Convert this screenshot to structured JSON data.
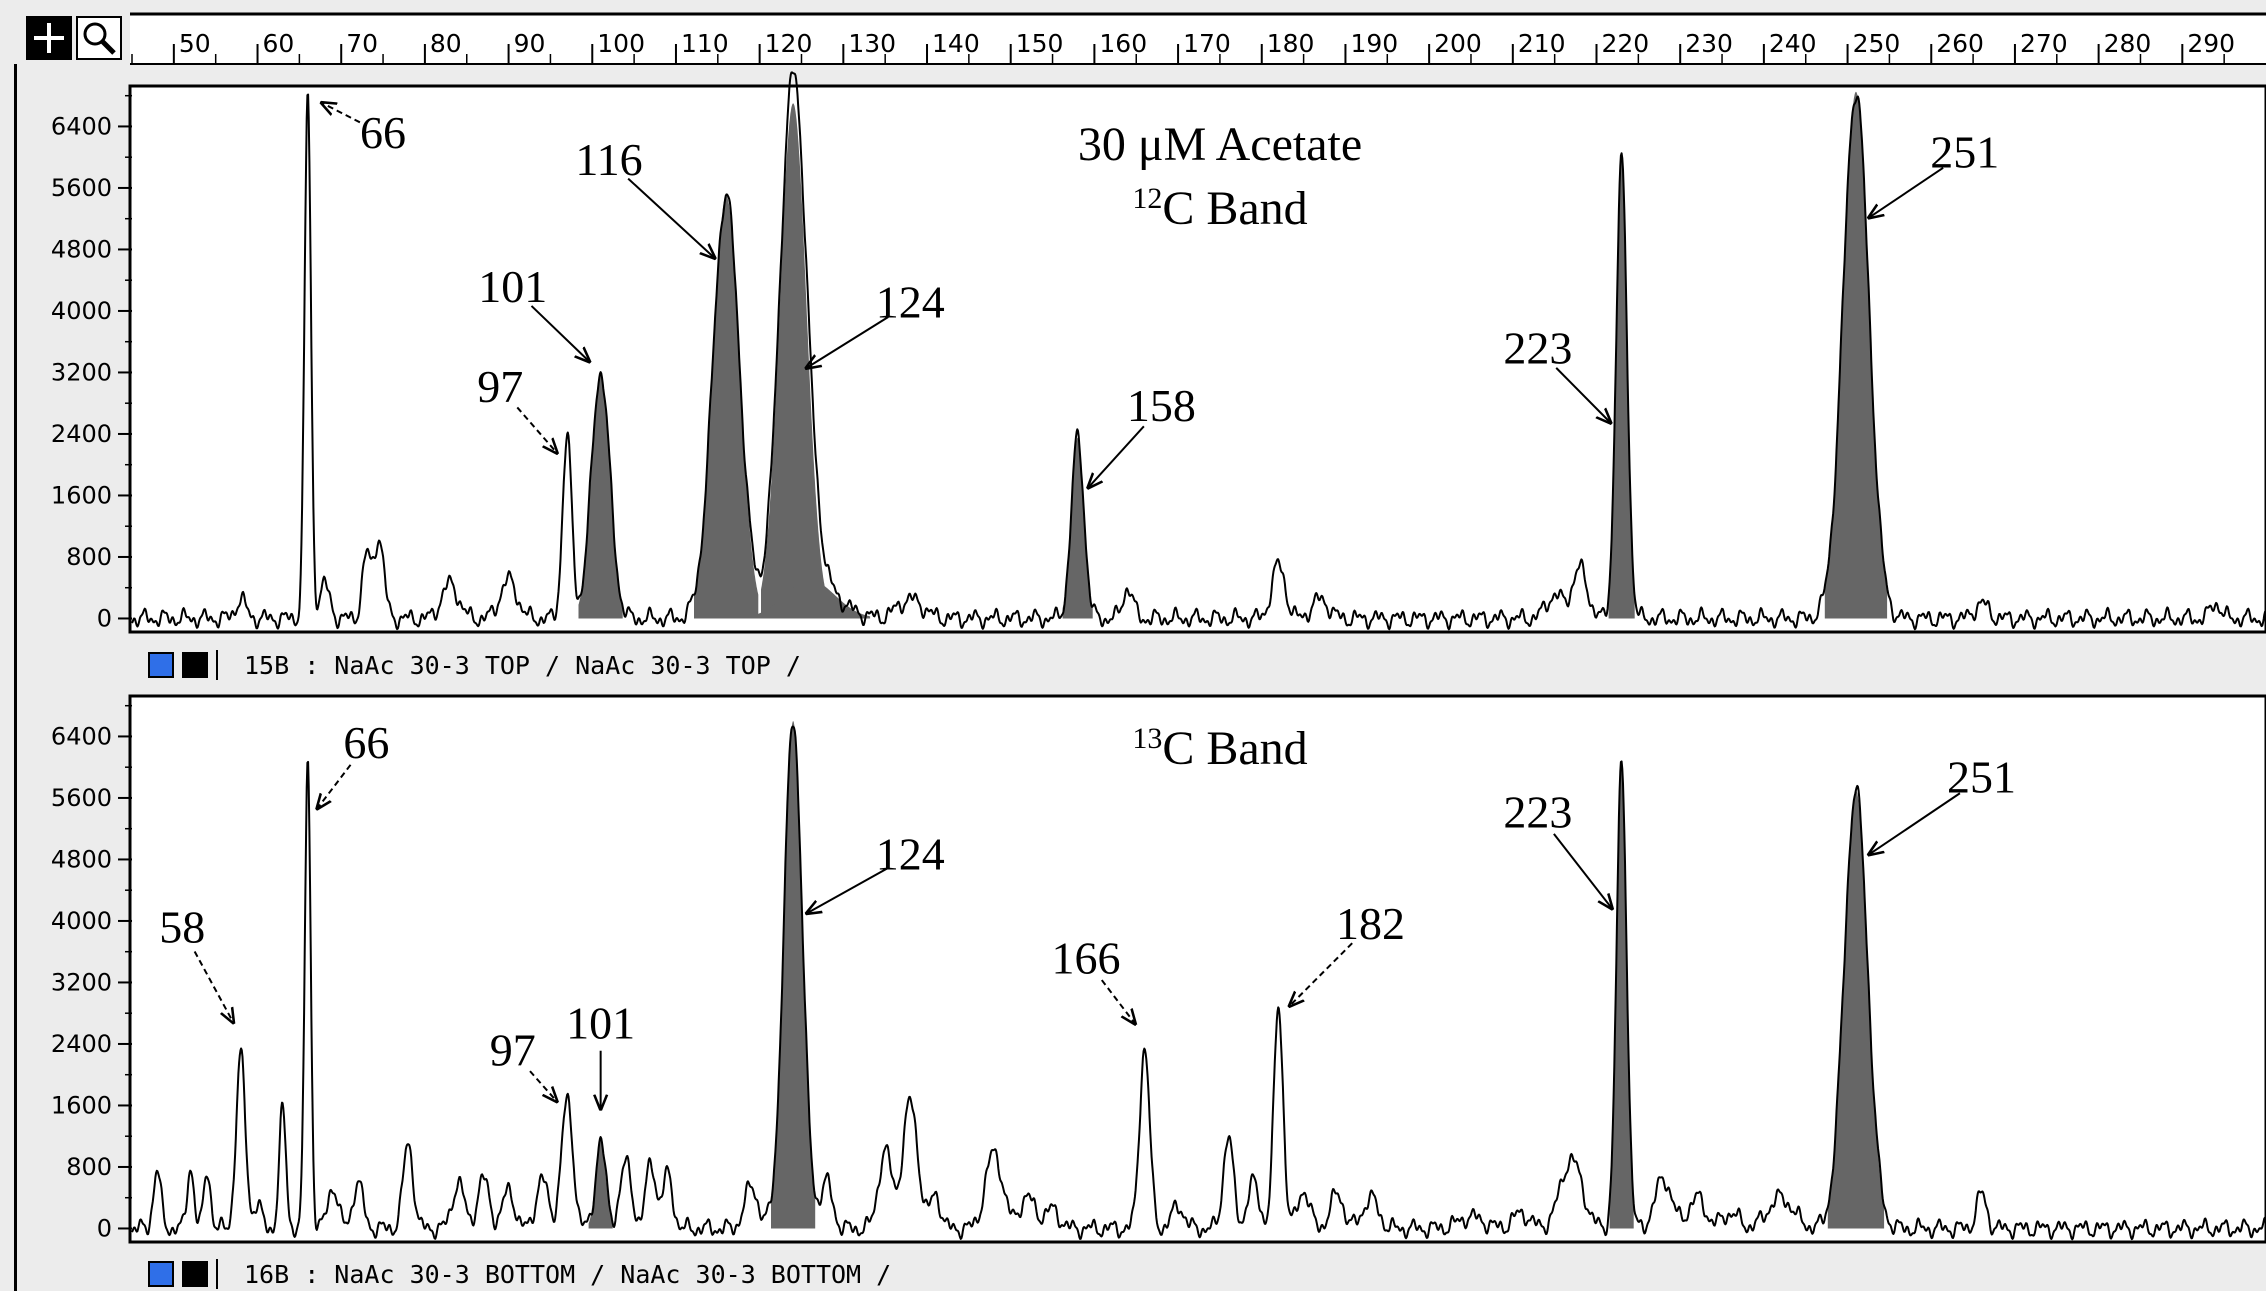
{
  "toolbar": {
    "crosshair_tool": "crosshair-icon",
    "zoom_tool": "magnifier-icon"
  },
  "colors": {
    "peak_fill": "#666666",
    "trace": "#000000",
    "swatch_blue": "#2f6fe8",
    "swatch_black": "#000000",
    "frame_bg": "#ececec"
  },
  "chart_data": [
    {
      "type": "line",
      "xlim": [
        45,
        300
      ],
      "ylim": [
        -150,
        6900
      ],
      "x_ticks": [
        50,
        60,
        70,
        80,
        90,
        100,
        110,
        120,
        130,
        140,
        150,
        160,
        170,
        180,
        190,
        200,
        210,
        220,
        230,
        240,
        250,
        260,
        270,
        280,
        290
      ],
      "y_ticks": [
        0,
        800,
        1600,
        2400,
        3200,
        4000,
        4800,
        5600,
        6400
      ],
      "title": "30 μM Acetate",
      "subtitle_sup": "12",
      "subtitle": "C Band",
      "status_label": "15B : NaAc 30-3 TOP / NaAc 30-3 TOP /",
      "peaks": [
        {
          "x": 58,
          "height": 250,
          "width": 0.6,
          "filled": false
        },
        {
          "x": 66,
          "height": 6800,
          "width": 0.38,
          "filled": false
        },
        {
          "x": 68,
          "height": 450,
          "width": 0.6,
          "filled": false
        },
        {
          "x": 73,
          "height": 800,
          "width": 0.5,
          "filled": false
        },
        {
          "x": 74.5,
          "height": 1050,
          "width": 0.6,
          "filled": false
        },
        {
          "x": 83,
          "height": 450,
          "width": 1.0,
          "filled": false
        },
        {
          "x": 90,
          "height": 500,
          "width": 1.0,
          "filled": false
        },
        {
          "x": 97,
          "height": 2350,
          "width": 0.55,
          "filled": false
        },
        {
          "x": 101,
          "height": 3200,
          "width": 1.1,
          "filled": true
        },
        {
          "x": 116,
          "height": 5500,
          "width": 1.6,
          "filled": true
        },
        {
          "x": 124,
          "height": 6700,
          "width": 1.6,
          "filled": true
        },
        {
          "x": 126,
          "height": 500,
          "width": 3.0,
          "filled": true
        },
        {
          "x": 138,
          "height": 250,
          "width": 1.5,
          "filled": false
        },
        {
          "x": 158,
          "height": 2350,
          "width": 0.75,
          "filled": true
        },
        {
          "x": 164,
          "height": 400,
          "width": 0.6,
          "filled": false
        },
        {
          "x": 182,
          "height": 700,
          "width": 0.8,
          "filled": false
        },
        {
          "x": 187,
          "height": 250,
          "width": 1.0,
          "filled": false
        },
        {
          "x": 215,
          "height": 300,
          "width": 1.0,
          "filled": false
        },
        {
          "x": 218,
          "height": 650,
          "width": 0.9,
          "filled": false
        },
        {
          "x": 223,
          "height": 5950,
          "width": 0.65,
          "filled": true
        },
        {
          "x": 251,
          "height": 6850,
          "width": 1.55,
          "filled": true
        },
        {
          "x": 266,
          "height": 200,
          "width": 0.8,
          "filled": false
        },
        {
          "x": 294,
          "height": 200,
          "width": 0.6,
          "filled": false
        }
      ],
      "annotations": [
        {
          "label": "66",
          "x": 66,
          "y": 6800,
          "text_x": 75,
          "text_y": 6300,
          "dashed": true
        },
        {
          "label": "97",
          "x": 97,
          "y": 2000,
          "text_x": 89,
          "text_y": 3000,
          "dashed": true
        },
        {
          "label": "101",
          "x": 101,
          "y": 3200,
          "text_x": 90.5,
          "text_y": 4300,
          "dashed": false
        },
        {
          "label": "116",
          "x": 116,
          "y": 4550,
          "text_x": 102,
          "text_y": 5950,
          "dashed": false
        },
        {
          "label": "124",
          "x": 124,
          "y": 3150,
          "text_x": 138,
          "text_y": 4100,
          "dashed": false
        },
        {
          "label": "158",
          "x": 158,
          "y": 1550,
          "text_x": 168,
          "text_y": 2750,
          "dashed": false
        },
        {
          "label": "223",
          "x": 223,
          "y": 2400,
          "text_x": 213,
          "text_y": 3500,
          "dashed": false
        },
        {
          "label": "251",
          "x": 251,
          "y": 5100,
          "text_x": 264,
          "text_y": 6050,
          "dashed": false
        }
      ]
    },
    {
      "type": "line",
      "xlim": [
        45,
        300
      ],
      "ylim": [
        -150,
        6900
      ],
      "x_ticks": [
        50,
        60,
        70,
        80,
        90,
        100,
        110,
        120,
        130,
        140,
        150,
        160,
        170,
        180,
        190,
        200,
        210,
        220,
        230,
        240,
        250,
        260,
        270,
        280,
        290
      ],
      "y_ticks": [
        0,
        800,
        1600,
        2400,
        3200,
        4000,
        4800,
        5600,
        6400
      ],
      "title": "",
      "subtitle_sup": "13",
      "subtitle": "C Band",
      "status_label": "16B : NaAc 30-3 BOTTOM / NaAc 30-3 BOTTOM /",
      "peaks": [
        {
          "x": 48,
          "height": 750,
          "width": 0.45,
          "filled": false
        },
        {
          "x": 52,
          "height": 800,
          "width": 0.4,
          "filled": false
        },
        {
          "x": 54,
          "height": 750,
          "width": 0.4,
          "filled": false
        },
        {
          "x": 58,
          "height": 2250,
          "width": 0.55,
          "filled": false
        },
        {
          "x": 60,
          "height": 300,
          "width": 0.5,
          "filled": false
        },
        {
          "x": 63,
          "height": 1550,
          "width": 0.4,
          "filled": false
        },
        {
          "x": 66,
          "height": 6100,
          "width": 0.35,
          "filled": false
        },
        {
          "x": 69,
          "height": 550,
          "width": 0.6,
          "filled": false
        },
        {
          "x": 72,
          "height": 600,
          "width": 0.6,
          "filled": false
        },
        {
          "x": 78,
          "height": 1100,
          "width": 0.6,
          "filled": false
        },
        {
          "x": 84,
          "height": 600,
          "width": 0.7,
          "filled": false
        },
        {
          "x": 87,
          "height": 650,
          "width": 0.7,
          "filled": false
        },
        {
          "x": 90,
          "height": 500,
          "width": 0.7,
          "filled": false
        },
        {
          "x": 94,
          "height": 650,
          "width": 0.7,
          "filled": false
        },
        {
          "x": 97,
          "height": 1650,
          "width": 0.7,
          "filled": false
        },
        {
          "x": 101,
          "height": 1150,
          "width": 0.6,
          "filled": true
        },
        {
          "x": 104,
          "height": 850,
          "width": 0.7,
          "filled": false
        },
        {
          "x": 107,
          "height": 850,
          "width": 0.6,
          "filled": false
        },
        {
          "x": 109,
          "height": 700,
          "width": 0.6,
          "filled": false
        },
        {
          "x": 119,
          "height": 550,
          "width": 0.8,
          "filled": false
        },
        {
          "x": 124,
          "height": 6600,
          "width": 1.1,
          "filled": true
        },
        {
          "x": 128,
          "height": 600,
          "width": 0.7,
          "filled": false
        },
        {
          "x": 135,
          "height": 1000,
          "width": 0.8,
          "filled": false
        },
        {
          "x": 138,
          "height": 1650,
          "width": 0.9,
          "filled": false
        },
        {
          "x": 141,
          "height": 450,
          "width": 0.6,
          "filled": false
        },
        {
          "x": 148,
          "height": 1000,
          "width": 1.0,
          "filled": false
        },
        {
          "x": 152,
          "height": 400,
          "width": 1.0,
          "filled": false
        },
        {
          "x": 155,
          "height": 250,
          "width": 0.8,
          "filled": false
        },
        {
          "x": 166,
          "height": 2350,
          "width": 0.6,
          "filled": false
        },
        {
          "x": 170,
          "height": 300,
          "width": 0.7,
          "filled": false
        },
        {
          "x": 176,
          "height": 1200,
          "width": 0.6,
          "filled": false
        },
        {
          "x": 179,
          "height": 600,
          "width": 0.7,
          "filled": false
        },
        {
          "x": 182,
          "height": 2900,
          "width": 0.55,
          "filled": false
        },
        {
          "x": 185,
          "height": 500,
          "width": 0.7,
          "filled": false
        },
        {
          "x": 189,
          "height": 450,
          "width": 0.8,
          "filled": false
        },
        {
          "x": 193,
          "height": 400,
          "width": 0.9,
          "filled": false
        },
        {
          "x": 205,
          "height": 150,
          "width": 1.5,
          "filled": false
        },
        {
          "x": 211,
          "height": 200,
          "width": 1.0,
          "filled": false
        },
        {
          "x": 217,
          "height": 900,
          "width": 1.3,
          "filled": false
        },
        {
          "x": 223,
          "height": 6050,
          "width": 0.6,
          "filled": true
        },
        {
          "x": 228,
          "height": 650,
          "width": 1.0,
          "filled": false
        },
        {
          "x": 232,
          "height": 400,
          "width": 1.0,
          "filled": false
        },
        {
          "x": 236,
          "height": 200,
          "width": 1.0,
          "filled": false
        },
        {
          "x": 242,
          "height": 400,
          "width": 1.5,
          "filled": false
        },
        {
          "x": 251,
          "height": 5700,
          "width": 1.4,
          "filled": true
        },
        {
          "x": 266,
          "height": 450,
          "width": 0.6,
          "filled": false
        }
      ],
      "annotations": [
        {
          "label": "58",
          "x": 58,
          "y": 2500,
          "text_x": 51,
          "text_y": 3900,
          "dashed": true
        },
        {
          "label": "66",
          "x": 66,
          "y": 5300,
          "text_x": 73,
          "text_y": 6300,
          "dashed": true
        },
        {
          "label": "97",
          "x": 97,
          "y": 1500,
          "text_x": 90.5,
          "text_y": 2300,
          "dashed": true
        },
        {
          "label": "101",
          "x": 101,
          "y": 1350,
          "text_x": 101,
          "text_y": 2650,
          "dashed": false
        },
        {
          "label": "124",
          "x": 124,
          "y": 4000,
          "text_x": 138,
          "text_y": 4850,
          "dashed": false
        },
        {
          "label": "166",
          "x": 166,
          "y": 2500,
          "text_x": 159,
          "text_y": 3500,
          "dashed": true
        },
        {
          "label": "182",
          "x": 182,
          "y": 2750,
          "text_x": 193,
          "text_y": 3950,
          "dashed": true
        },
        {
          "label": "223",
          "x": 223,
          "y": 4000,
          "text_x": 213,
          "text_y": 5400,
          "dashed": false
        },
        {
          "label": "251",
          "x": 251,
          "y": 4750,
          "text_x": 266,
          "text_y": 5850,
          "dashed": false
        }
      ]
    }
  ]
}
